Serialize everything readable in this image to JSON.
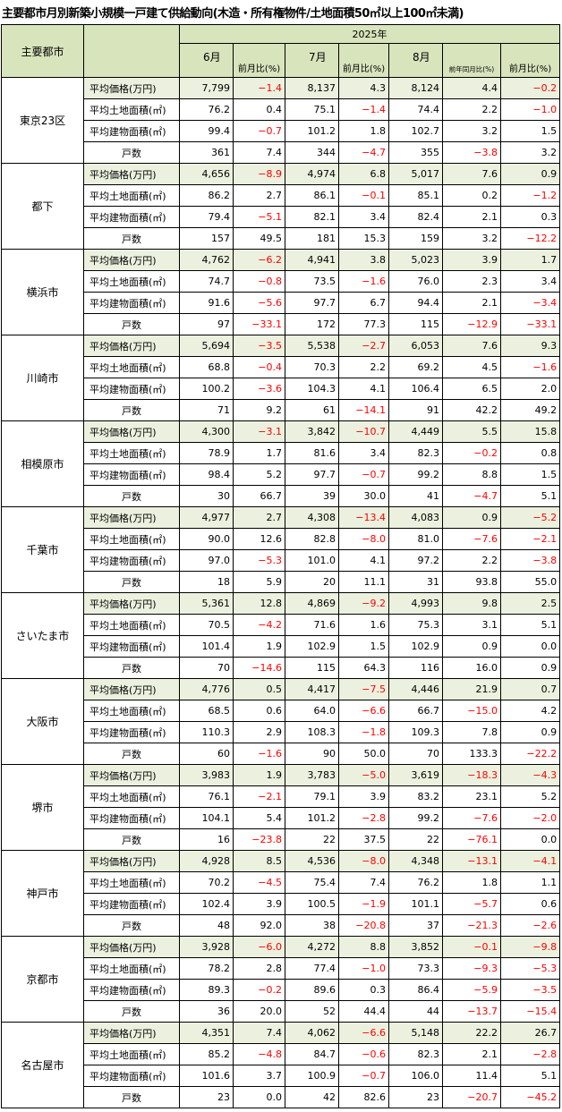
{
  "title": "主要都市月別新築小規模一戸建て供給動向(木造・所有権物件/土地面積50㎡以上100㎡未満)",
  "header": {
    "city_col": "主要都市",
    "year": "2025年",
    "months": [
      "6月",
      "7月",
      "8月"
    ],
    "mom": "前月比(%)",
    "yoy": "前年同月比(%)"
  },
  "metrics": [
    "平均価格(万円)",
    "平均土地面積(㎡)",
    "平均建物面積(㎡)",
    "戸数"
  ],
  "cities": [
    {
      "name": "東京23区",
      "rows": [
        [
          "7,799",
          "-1.4",
          "8,137",
          "4.3",
          "8,124",
          "4.4",
          "-0.2"
        ],
        [
          "76.2",
          "0.4",
          "75.1",
          "-1.4",
          "74.4",
          "2.2",
          "-1.0"
        ],
        [
          "99.4",
          "-0.7",
          "101.2",
          "1.8",
          "102.7",
          "3.2",
          "1.5"
        ],
        [
          "361",
          "7.4",
          "344",
          "-4.7",
          "355",
          "-3.8",
          "3.2"
        ]
      ]
    },
    {
      "name": "都下",
      "rows": [
        [
          "4,656",
          "-8.9",
          "4,974",
          "6.8",
          "5,017",
          "7.6",
          "0.9"
        ],
        [
          "86.2",
          "2.7",
          "86.1",
          "-0.1",
          "85.1",
          "0.2",
          "-1.2"
        ],
        [
          "79.4",
          "-5.1",
          "82.1",
          "3.4",
          "82.4",
          "2.1",
          "0.3"
        ],
        [
          "157",
          "49.5",
          "181",
          "15.3",
          "159",
          "3.2",
          "-12.2"
        ]
      ]
    },
    {
      "name": "横浜市",
      "rows": [
        [
          "4,762",
          "-6.2",
          "4,941",
          "3.8",
          "5,023",
          "3.9",
          "1.7"
        ],
        [
          "74.7",
          "-0.8",
          "73.5",
          "-1.6",
          "76.0",
          "2.3",
          "3.4"
        ],
        [
          "91.6",
          "-5.6",
          "97.7",
          "6.7",
          "94.4",
          "2.1",
          "-3.4"
        ],
        [
          "97",
          "-33.1",
          "172",
          "77.3",
          "115",
          "-12.9",
          "-33.1"
        ]
      ]
    },
    {
      "name": "川崎市",
      "rows": [
        [
          "5,694",
          "-3.5",
          "5,538",
          "-2.7",
          "6,053",
          "7.6",
          "9.3"
        ],
        [
          "68.8",
          "-0.4",
          "70.3",
          "2.2",
          "69.2",
          "4.5",
          "-1.6"
        ],
        [
          "100.2",
          "-3.6",
          "104.3",
          "4.1",
          "106.4",
          "6.5",
          "2.0"
        ],
        [
          "71",
          "9.2",
          "61",
          "-14.1",
          "91",
          "42.2",
          "49.2"
        ]
      ]
    },
    {
      "name": "相模原市",
      "rows": [
        [
          "4,300",
          "-3.1",
          "3,842",
          "-10.7",
          "4,449",
          "5.5",
          "15.8"
        ],
        [
          "78.9",
          "1.7",
          "81.6",
          "3.4",
          "82.3",
          "-0.2",
          "0.8"
        ],
        [
          "98.4",
          "5.2",
          "97.7",
          "-0.7",
          "99.2",
          "8.8",
          "1.5"
        ],
        [
          "30",
          "66.7",
          "39",
          "30.0",
          "41",
          "-4.7",
          "5.1"
        ]
      ]
    },
    {
      "name": "千葉市",
      "rows": [
        [
          "4,977",
          "2.7",
          "4,308",
          "-13.4",
          "4,083",
          "0.9",
          "-5.2"
        ],
        [
          "90.0",
          "12.6",
          "82.8",
          "-8.0",
          "81.0",
          "-7.6",
          "-2.1"
        ],
        [
          "97.0",
          "-5.3",
          "101.0",
          "4.1",
          "97.2",
          "2.2",
          "-3.8"
        ],
        [
          "18",
          "5.9",
          "20",
          "11.1",
          "31",
          "93.8",
          "55.0"
        ]
      ]
    },
    {
      "name": "さいたま市",
      "rows": [
        [
          "5,361",
          "12.8",
          "4,869",
          "-9.2",
          "4,993",
          "9.8",
          "2.5"
        ],
        [
          "70.5",
          "-4.2",
          "71.6",
          "1.6",
          "75.3",
          "3.1",
          "5.1"
        ],
        [
          "101.4",
          "1.9",
          "102.9",
          "1.5",
          "102.9",
          "0.9",
          "0.0"
        ],
        [
          "70",
          "-14.6",
          "115",
          "64.3",
          "116",
          "16.0",
          "0.9"
        ]
      ]
    },
    {
      "name": "大阪市",
      "rows": [
        [
          "4,776",
          "0.5",
          "4,417",
          "-7.5",
          "4,446",
          "21.9",
          "0.7"
        ],
        [
          "68.5",
          "0.6",
          "64.0",
          "-6.6",
          "66.7",
          "-15.0",
          "4.2"
        ],
        [
          "110.3",
          "2.9",
          "108.3",
          "-1.8",
          "109.3",
          "7.8",
          "0.9"
        ],
        [
          "60",
          "-1.6",
          "90",
          "50.0",
          "70",
          "133.3",
          "-22.2"
        ]
      ]
    },
    {
      "name": "堺市",
      "rows": [
        [
          "3,983",
          "1.9",
          "3,783",
          "-5.0",
          "3,619",
          "-18.3",
          "-4.3"
        ],
        [
          "76.1",
          "-2.1",
          "79.1",
          "3.9",
          "83.2",
          "23.1",
          "5.2"
        ],
        [
          "104.1",
          "5.4",
          "101.2",
          "-2.8",
          "99.2",
          "-7.6",
          "-2.0"
        ],
        [
          "16",
          "-23.8",
          "22",
          "37.5",
          "22",
          "-76.1",
          "0.0"
        ]
      ]
    },
    {
      "name": "神戸市",
      "rows": [
        [
          "4,928",
          "8.5",
          "4,536",
          "-8.0",
          "4,348",
          "-13.1",
          "-4.1"
        ],
        [
          "70.2",
          "-4.5",
          "75.4",
          "7.4",
          "76.2",
          "1.8",
          "1.1"
        ],
        [
          "102.4",
          "3.9",
          "100.5",
          "-1.9",
          "101.1",
          "-5.7",
          "0.6"
        ],
        [
          "48",
          "92.0",
          "38",
          "-20.8",
          "37",
          "-21.3",
          "-2.6"
        ]
      ]
    },
    {
      "name": "京都市",
      "rows": [
        [
          "3,928",
          "-6.0",
          "4,272",
          "8.8",
          "3,852",
          "-0.1",
          "-9.8"
        ],
        [
          "78.2",
          "2.8",
          "77.4",
          "-1.0",
          "73.3",
          "-9.3",
          "-5.3"
        ],
        [
          "89.3",
          "-0.2",
          "89.6",
          "0.3",
          "86.4",
          "-5.9",
          "-3.5"
        ],
        [
          "36",
          "20.0",
          "52",
          "44.4",
          "44",
          "-13.7",
          "-15.4"
        ]
      ]
    },
    {
      "name": "名古屋市",
      "rows": [
        [
          "4,351",
          "7.4",
          "4,062",
          "-6.6",
          "5,148",
          "22.2",
          "26.7"
        ],
        [
          "85.2",
          "-4.8",
          "84.7",
          "-0.6",
          "82.3",
          "2.1",
          "-2.8"
        ],
        [
          "101.6",
          "3.7",
          "100.9",
          "-0.7",
          "106.0",
          "11.4",
          "5.1"
        ],
        [
          "23",
          "0.0",
          "42",
          "82.6",
          "23",
          "-20.7",
          "-45.2"
        ]
      ]
    }
  ]
}
